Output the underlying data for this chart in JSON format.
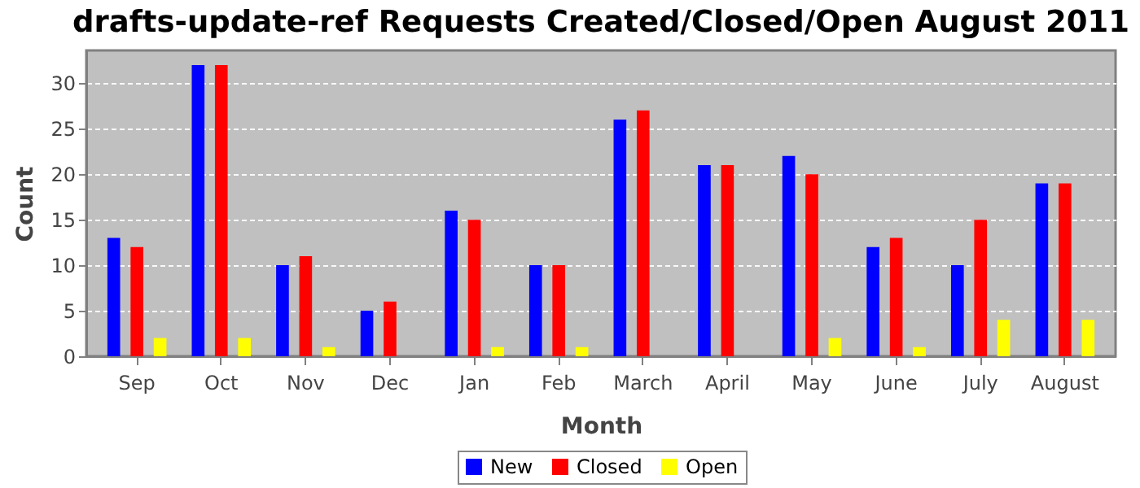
{
  "chart_data": {
    "type": "bar",
    "title": "drafts-update-ref Requests Created/Closed/Open August 2011",
    "xlabel": "Month",
    "ylabel": "Count",
    "categories": [
      "Sep",
      "Oct",
      "Nov",
      "Dec",
      "Jan",
      "Feb",
      "March",
      "April",
      "May",
      "June",
      "July",
      "August"
    ],
    "series": [
      {
        "name": "New",
        "color": "#0000ff",
        "values": [
          13,
          32,
          10,
          5,
          16,
          10,
          26,
          21,
          22,
          12,
          10,
          19
        ]
      },
      {
        "name": "Closed",
        "color": "#ff0000",
        "values": [
          12,
          32,
          11,
          6,
          15,
          10,
          27,
          21,
          20,
          13,
          15,
          19
        ]
      },
      {
        "name": "Open",
        "color": "#ffff00",
        "values": [
          2,
          2,
          1,
          0,
          1,
          1,
          0,
          0,
          2,
          1,
          4,
          4
        ]
      }
    ],
    "ylim": [
      0,
      33.6
    ],
    "yticks": [
      0,
      5,
      10,
      15,
      20,
      25,
      30
    ],
    "grid": "y",
    "legend": "bottom"
  }
}
